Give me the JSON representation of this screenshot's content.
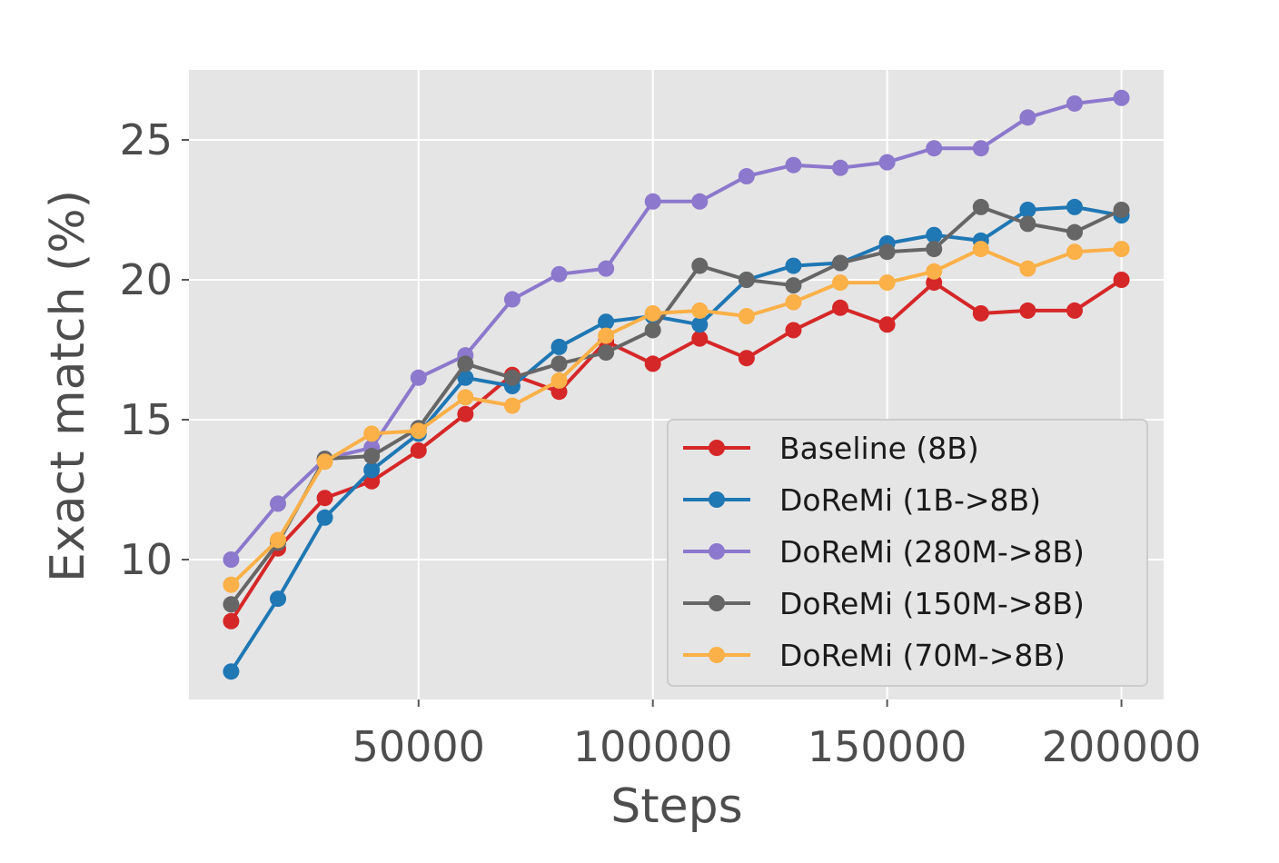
{
  "chart_data": {
    "type": "line",
    "title": "",
    "xlabel": "Steps",
    "ylabel": "Exact match (%)",
    "xlim": [
      1000,
      209000
    ],
    "ylim": [
      5.0,
      27.5
    ],
    "xticks": [
      50000,
      100000,
      150000,
      200000
    ],
    "yticks": [
      10,
      15,
      20,
      25
    ],
    "xtick_labels": [
      "50000",
      "100000",
      "150000",
      "200000"
    ],
    "ytick_labels": [
      "10",
      "15",
      "20",
      "25"
    ],
    "grid": true,
    "legend_position": "lower-right",
    "x": [
      10000,
      20000,
      30000,
      40000,
      50000,
      60000,
      70000,
      80000,
      90000,
      100000,
      110000,
      120000,
      130000,
      140000,
      150000,
      160000,
      170000,
      180000,
      190000,
      200000
    ],
    "series": [
      {
        "name": "Baseline (8B)",
        "color": "#d62728",
        "values": [
          7.8,
          10.4,
          12.2,
          12.8,
          13.9,
          15.2,
          16.6,
          16.0,
          17.8,
          17.0,
          17.9,
          17.2,
          18.2,
          19.0,
          18.4,
          19.9,
          18.8,
          18.9,
          18.9,
          20.0
        ]
      },
      {
        "name": "DoReMi (1B->8B)",
        "color": "#1f77b4",
        "values": [
          6.0,
          8.6,
          11.5,
          13.2,
          14.5,
          16.5,
          16.2,
          17.6,
          18.5,
          18.7,
          18.4,
          20.0,
          20.5,
          20.6,
          21.3,
          21.6,
          21.4,
          22.5,
          22.6,
          22.3
        ]
      },
      {
        "name": "DoReMi (280M->8B)",
        "color": "#8c78cc",
        "values": [
          10.0,
          12.0,
          13.6,
          14.0,
          16.5,
          17.3,
          19.3,
          20.2,
          20.4,
          22.8,
          22.8,
          23.7,
          24.1,
          24.0,
          24.2,
          24.7,
          24.7,
          25.8,
          26.3,
          26.5
        ]
      },
      {
        "name": "DoReMi (150M->8B)",
        "color": "#666666",
        "values": [
          8.4,
          10.6,
          13.6,
          13.7,
          14.7,
          17.0,
          16.5,
          17.0,
          17.4,
          18.2,
          20.5,
          20.0,
          19.8,
          20.6,
          21.0,
          21.1,
          22.6,
          22.0,
          21.7,
          22.5
        ]
      },
      {
        "name": "DoReMi (70M->8B)",
        "color": "#fbb048",
        "values": [
          9.1,
          10.7,
          13.5,
          14.5,
          14.6,
          15.8,
          15.5,
          16.4,
          18.0,
          18.8,
          18.9,
          18.7,
          19.2,
          19.9,
          19.9,
          20.3,
          21.1,
          20.4,
          21.0,
          21.1
        ]
      }
    ]
  }
}
